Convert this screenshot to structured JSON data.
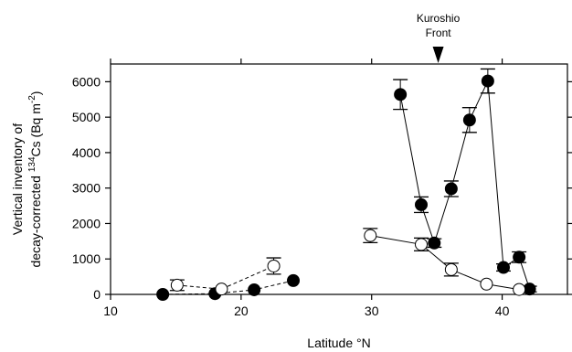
{
  "chart_data": {
    "type": "scatter",
    "xlabel": "Latitude °N",
    "ylabel_line1": "Vertical inventory of",
    "ylabel_line2_pre": "decay-corrected ",
    "ylabel_sup1": "134",
    "ylabel_line2_mid": "Cs (Bq m",
    "ylabel_sup2": "-2",
    "ylabel_line2_post": ")",
    "xlim": [
      10,
      45
    ],
    "ylim": [
      0,
      6500
    ],
    "xticks": [
      10,
      20,
      30,
      40
    ],
    "yticks": [
      0,
      1000,
      2000,
      3000,
      4000,
      5000,
      6000
    ],
    "annotation": {
      "line1": "Kuroshio",
      "line2": "Front",
      "x": 35.1
    },
    "series": [
      {
        "marker": "filled",
        "line": "dashed",
        "points": [
          {
            "x": 14.0,
            "y": 0
          },
          {
            "x": 18.0,
            "y": 20
          },
          {
            "x": 21.0,
            "y": 130
          },
          {
            "x": 24.0,
            "y": 390
          }
        ]
      },
      {
        "marker": "open",
        "line": "dashed",
        "points": [
          {
            "x": 15.1,
            "y": 260,
            "err": 150
          },
          {
            "x": 18.5,
            "y": 150
          },
          {
            "x": 22.5,
            "y": 800,
            "err": 230
          }
        ]
      },
      {
        "marker": "filled",
        "line": "solid",
        "points": [
          {
            "x": 32.2,
            "y": 5640,
            "err": 420
          },
          {
            "x": 33.8,
            "y": 2530,
            "err": 220
          },
          {
            "x": 34.8,
            "y": 1450,
            "err": 120
          },
          {
            "x": 36.1,
            "y": 2980,
            "err": 220
          },
          {
            "x": 37.5,
            "y": 4920,
            "err": 350
          },
          {
            "x": 38.9,
            "y": 6020,
            "err": 340
          },
          {
            "x": 40.1,
            "y": 760,
            "err": 100
          },
          {
            "x": 41.3,
            "y": 1050,
            "err": 150
          },
          {
            "x": 42.1,
            "y": 150,
            "err": 80
          }
        ]
      },
      {
        "marker": "open",
        "line": "solid",
        "points": [
          {
            "x": 29.9,
            "y": 1660,
            "err": 200
          },
          {
            "x": 33.8,
            "y": 1410,
            "err": 180
          },
          {
            "x": 36.1,
            "y": 700,
            "err": 180
          },
          {
            "x": 38.8,
            "y": 290
          },
          {
            "x": 41.3,
            "y": 140
          }
        ]
      }
    ]
  }
}
